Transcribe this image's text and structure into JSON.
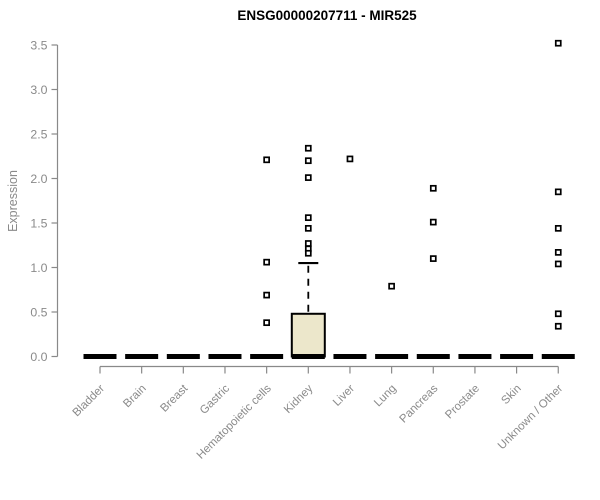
{
  "title": "ENSG00000207711 - MIR525",
  "chart_data": {
    "type": "boxplot",
    "title": "ENSG00000207711 - MIR525",
    "xlabel": "",
    "ylabel": "Expression",
    "ylim": [
      0.0,
      3.5
    ],
    "yticks": [
      "0.0",
      "0.5",
      "1.0",
      "1.5",
      "2.0",
      "2.5",
      "3.0",
      "3.5"
    ],
    "grid": false,
    "legend": null,
    "categories": [
      "Bladder",
      "Brain",
      "Breast",
      "Gastric",
      "Hematopoietic cells",
      "Kidney",
      "Liver",
      "Lung",
      "Pancreas",
      "Prostate",
      "Skin",
      "Unknown / Other"
    ],
    "boxes": [
      {
        "category": "Bladder",
        "q1": 0,
        "median": 0,
        "q3": 0,
        "whisker_low": 0,
        "whisker_high": 0,
        "outliers": []
      },
      {
        "category": "Brain",
        "q1": 0,
        "median": 0,
        "q3": 0,
        "whisker_low": 0,
        "whisker_high": 0,
        "outliers": []
      },
      {
        "category": "Breast",
        "q1": 0,
        "median": 0,
        "q3": 0,
        "whisker_low": 0,
        "whisker_high": 0,
        "outliers": []
      },
      {
        "category": "Gastric",
        "q1": 0,
        "median": 0,
        "q3": 0,
        "whisker_low": 0,
        "whisker_high": 0,
        "outliers": []
      },
      {
        "category": "Hematopoietic cells",
        "q1": 0,
        "median": 0,
        "q3": 0,
        "whisker_low": 0,
        "whisker_high": 0,
        "outliers": [
          2.21,
          1.06,
          0.69,
          0.38
        ]
      },
      {
        "category": "Kidney",
        "q1": 0,
        "median": 0,
        "q3": 0.48,
        "whisker_low": 0,
        "whisker_high": 1.05,
        "outliers": [
          2.34,
          2.2,
          2.01,
          1.56,
          1.44,
          1.27,
          1.21,
          1.16
        ]
      },
      {
        "category": "Liver",
        "q1": 0,
        "median": 0,
        "q3": 0,
        "whisker_low": 0,
        "whisker_high": 0,
        "outliers": [
          2.22
        ]
      },
      {
        "category": "Lung",
        "q1": 0,
        "median": 0,
        "q3": 0,
        "whisker_low": 0,
        "whisker_high": 0,
        "outliers": [
          0.79
        ]
      },
      {
        "category": "Pancreas",
        "q1": 0,
        "median": 0,
        "q3": 0,
        "whisker_low": 0,
        "whisker_high": 0,
        "outliers": [
          1.89,
          1.51,
          1.1
        ]
      },
      {
        "category": "Prostate",
        "q1": 0,
        "median": 0,
        "q3": 0,
        "whisker_low": 0,
        "whisker_high": 0,
        "outliers": []
      },
      {
        "category": "Skin",
        "q1": 0,
        "median": 0,
        "q3": 0,
        "whisker_low": 0,
        "whisker_high": 0,
        "outliers": []
      },
      {
        "category": "Unknown / Other",
        "q1": 0,
        "median": 0,
        "q3": 0,
        "whisker_low": 0,
        "whisker_high": 0,
        "outliers": [
          3.52,
          1.85,
          1.44,
          1.17,
          1.04,
          0.48,
          0.34
        ]
      }
    ],
    "colors": {
      "box_fill": "#ECE7CB",
      "box_stroke": "#000000",
      "median": "#000000",
      "outlier_fill": "#ffffff",
      "outlier_stroke": "#000000",
      "axis_line": "#898989",
      "tick_text": "#8a8a8a",
      "title_text": "#000000"
    }
  }
}
